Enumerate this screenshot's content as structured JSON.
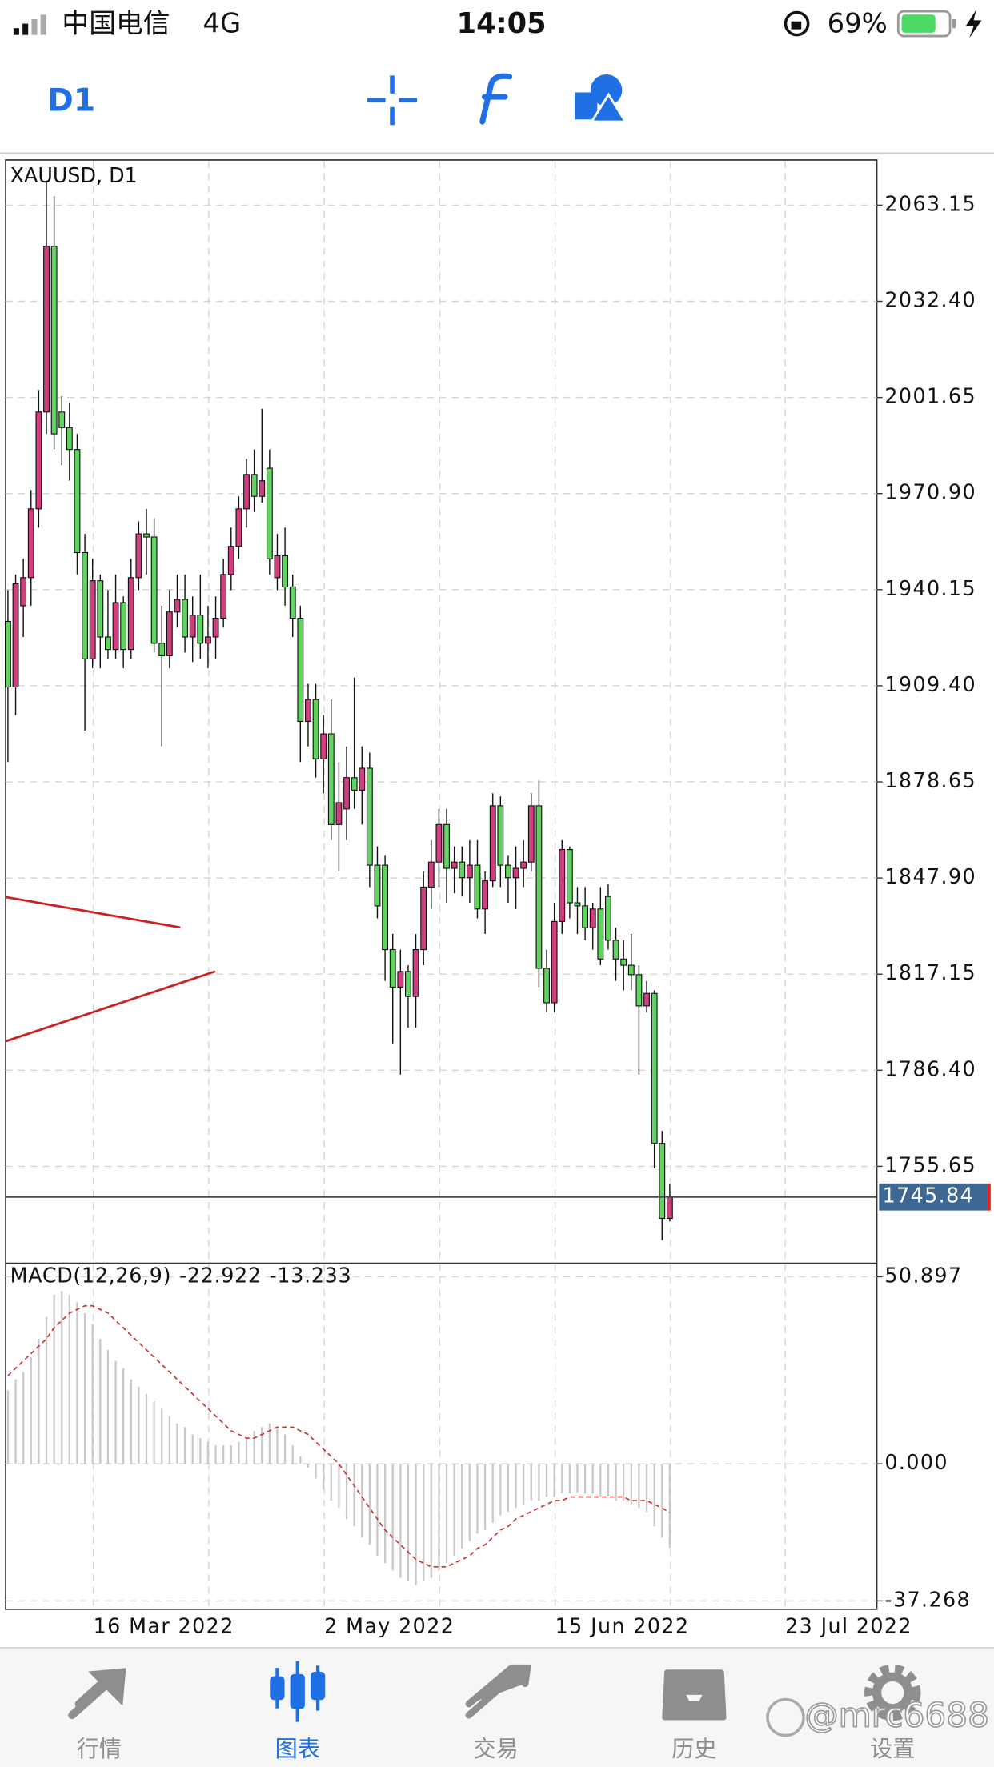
{
  "status_bar": {
    "carrier": "中国电信",
    "network": "4G",
    "time": "14:05",
    "battery": "69%"
  },
  "toolbar": {
    "timeframe": "D1"
  },
  "chart_data": [
    {
      "type": "candlestick",
      "title": "XAUUSD, D1",
      "open": [
        1930,
        1909,
        1935,
        1944,
        1966,
        1997,
        2050,
        1997,
        1992,
        1985,
        1952,
        1918,
        1943,
        1925,
        1921,
        1936,
        1921,
        1944,
        1958,
        1957,
        1923,
        1919,
        1933,
        1937,
        1925,
        1932,
        1923,
        1925,
        1931,
        1945,
        1954,
        1966,
        1977,
        1970,
        1979,
        1944,
        1951,
        1941,
        1931,
        1898,
        1905,
        1886,
        1894,
        1865,
        1870,
        1880,
        1876,
        1883,
        1852,
        1852,
        1825,
        1813,
        1818,
        1810,
        1825,
        1845,
        1853,
        1865,
        1851,
        1853,
        1848,
        1852,
        1838,
        1847,
        1871,
        1852,
        1848,
        1851,
        1853,
        1871,
        1819,
        1808,
        1834,
        1857,
        1840,
        1839,
        1832,
        1838,
        1842,
        1828,
        1822,
        1820,
        1817,
        1807,
        1811,
        1763,
        1739
      ],
      "high": [
        1940,
        1945,
        1950,
        1972,
        2004,
        2071,
        2066,
        2002,
        2000,
        1990,
        1958,
        1950,
        1945,
        1940,
        1945,
        1938,
        1950,
        1962,
        1966,
        1963,
        1935,
        1940,
        1945,
        1945,
        1938,
        1945,
        1935,
        1938,
        1950,
        1960,
        1970,
        1982,
        1985,
        1998,
        1985,
        1958,
        1960,
        1945,
        1935,
        1910,
        1910,
        1900,
        1905,
        1885,
        1890,
        1912,
        1890,
        1888,
        1858,
        1855,
        1830,
        1825,
        1820,
        1830,
        1850,
        1860,
        1870,
        1870,
        1858,
        1858,
        1860,
        1860,
        1850,
        1875,
        1874,
        1855,
        1858,
        1860,
        1875,
        1879,
        1825,
        1840,
        1860,
        1858,
        1845,
        1845,
        1840,
        1845,
        1846,
        1832,
        1828,
        1830,
        1820,
        1815,
        1812,
        1767,
        1750
      ],
      "low": [
        1885,
        1900,
        1925,
        1935,
        1960,
        1990,
        1985,
        1980,
        1975,
        1945,
        1895,
        1915,
        1915,
        1918,
        1918,
        1915,
        1918,
        1940,
        1945,
        1920,
        1890,
        1915,
        1928,
        1920,
        1917,
        1918,
        1915,
        1918,
        1928,
        1940,
        1950,
        1960,
        1965,
        1968,
        1945,
        1940,
        1935,
        1925,
        1885,
        1890,
        1880,
        1875,
        1860,
        1850,
        1860,
        1870,
        1865,
        1845,
        1835,
        1815,
        1795,
        1785,
        1800,
        1800,
        1820,
        1838,
        1845,
        1840,
        1843,
        1842,
        1840,
        1835,
        1830,
        1845,
        1845,
        1840,
        1838,
        1845,
        1850,
        1813,
        1805,
        1805,
        1830,
        1835,
        1830,
        1828,
        1825,
        1820,
        1825,
        1815,
        1812,
        1812,
        1785,
        1805,
        1755,
        1732,
        1738
      ],
      "close": [
        1909,
        1942,
        1944,
        1966,
        1997,
        2050,
        1990,
        1992,
        1985,
        1952,
        1918,
        1943,
        1925,
        1921,
        1936,
        1921,
        1944,
        1958,
        1957,
        1923,
        1919,
        1933,
        1937,
        1925,
        1932,
        1923,
        1925,
        1931,
        1945,
        1954,
        1966,
        1977,
        1970,
        1975,
        1950,
        1951,
        1941,
        1931,
        1898,
        1905,
        1886,
        1894,
        1865,
        1872,
        1880,
        1876,
        1883,
        1852,
        1839,
        1825,
        1813,
        1818,
        1810,
        1825,
        1845,
        1853,
        1865,
        1851,
        1853,
        1848,
        1852,
        1838,
        1847,
        1871,
        1852,
        1848,
        1851,
        1853,
        1871,
        1819,
        1808,
        1834,
        1857,
        1840,
        1839,
        1832,
        1838,
        1822,
        1828,
        1822,
        1820,
        1817,
        1807,
        1811,
        1763,
        1739,
        1745.84
      ],
      "up_color": "#cf3f80",
      "down_color": "#5fd45f",
      "current_price": 1745.84,
      "xlim": [
        -0.3,
        112.9
      ],
      "xticks": [
        {
          "value": 11.1,
          "label": "16 Mar 2022"
        },
        {
          "value": 26.1,
          "label": null
        },
        {
          "value": 41.1,
          "label": "2 May 2022"
        },
        {
          "value": 56.1,
          "label": null
        },
        {
          "value": 71.1,
          "label": "15 Jun 2022"
        },
        {
          "value": 86.1,
          "label": null
        },
        {
          "value": 101,
          "label": "23 Jul 2022"
        }
      ],
      "ylim": [
        1725.0,
        2077.6
      ],
      "yticks": [
        2063.15,
        {
          "value": 2032.4,
          "label": "2032.40"
        },
        2001.65,
        {
          "value": 1970.9,
          "label": "1970.90"
        },
        1940.15,
        {
          "value": 1909.4,
          "label": "1909.40"
        },
        1878.65,
        {
          "value": 1847.9,
          "label": "1847.90"
        },
        1817.15,
        {
          "value": 1786.4,
          "label": "1786.40"
        },
        1755.65
      ],
      "grid": true
    },
    {
      "type": "macd",
      "title": "MACD(12,26,9)",
      "readout": [
        -22.922,
        -13.233
      ],
      "values": [
        20,
        23,
        25,
        29,
        34,
        40,
        46,
        47,
        46,
        44,
        41,
        38,
        34,
        31,
        28,
        26,
        23,
        21,
        19,
        17,
        15,
        13,
        11,
        10,
        8,
        7,
        6,
        5,
        5,
        5,
        6,
        7,
        9,
        10,
        11,
        10,
        8,
        5,
        2,
        -1,
        -4,
        -7,
        -10,
        -12,
        -15,
        -17,
        -20,
        -22,
        -25,
        -27,
        -29,
        -31,
        -32,
        -33,
        -32,
        -31,
        -29,
        -27,
        -25,
        -23,
        -21,
        -19,
        -18,
        -16,
        -14,
        -13,
        -12,
        -11,
        -10,
        -10,
        -9,
        -9,
        -8,
        -8,
        -8,
        -8,
        -8,
        -9,
        -9,
        -10,
        -10,
        -11,
        -12,
        -13,
        -17,
        -20,
        -22.922
      ],
      "signal": [
        24,
        26,
        28,
        30,
        32,
        34,
        37,
        39,
        41,
        42,
        43,
        43,
        42,
        41,
        39,
        37,
        35,
        33,
        31,
        29,
        27,
        25,
        23,
        21,
        19,
        17,
        15,
        13,
        11,
        9,
        8,
        7,
        7,
        8,
        9,
        10,
        10,
        10,
        9,
        8,
        6,
        4,
        2,
        0,
        -3,
        -6,
        -9,
        -12,
        -15,
        -18,
        -20,
        -22,
        -24,
        -26,
        -27,
        -28,
        -28,
        -28,
        -27,
        -26,
        -25,
        -23,
        -22,
        -20,
        -18,
        -17,
        -15,
        -14,
        -13,
        -12,
        -11,
        -10,
        -10,
        -9,
        -9,
        -9,
        -9,
        -9,
        -9,
        -9,
        -9,
        -10,
        -10,
        -10,
        -11,
        -12,
        -13.233
      ],
      "color": "#c8c8c8",
      "signal_color": "#cc3333",
      "ylim": [
        -39.55,
        54.27
      ],
      "yticks": [
        50.897,
        {
          "value": 0,
          "label": "0.000"
        },
        -37.268
      ],
      "grid": true
    }
  ],
  "tab_bar": {
    "tabs": [
      "行情",
      "图表",
      "交易",
      "历史",
      "设置"
    ],
    "active": 1
  },
  "watermark": "@mrc6688"
}
